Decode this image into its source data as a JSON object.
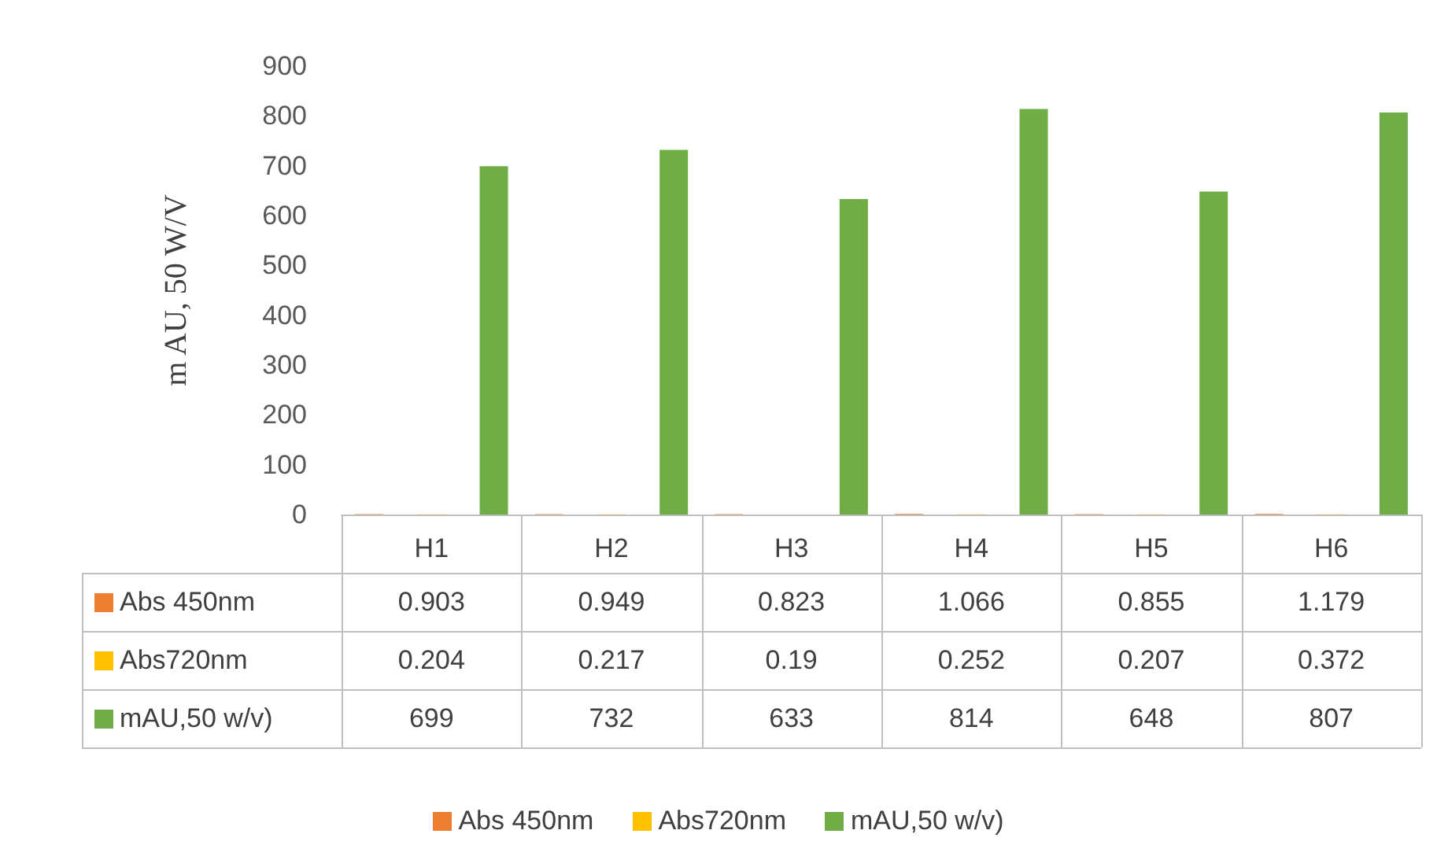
{
  "chart_data": {
    "type": "bar",
    "ylabel": "m AU, 50 W/V",
    "categories": [
      "H1",
      "H2",
      "H3",
      "H4",
      "H5",
      "H6"
    ],
    "series": [
      {
        "name": "Abs 450nm",
        "color": "#ed7d31",
        "values": [
          0.903,
          0.949,
          0.823,
          1.066,
          0.855,
          1.179
        ]
      },
      {
        "name": "Abs720nm",
        "color": "#ffc000",
        "values": [
          0.204,
          0.217,
          0.19,
          0.252,
          0.207,
          0.372
        ]
      },
      {
        "name": "mAU,50 w/v)",
        "color": "#70ad47",
        "values": [
          699,
          732,
          633,
          814,
          648,
          807
        ]
      }
    ],
    "ylim": [
      0,
      900
    ],
    "yticks": [
      0,
      100,
      200,
      300,
      400,
      500,
      600,
      700,
      800,
      900
    ],
    "grid": false,
    "legend": "bottom",
    "data_labels": true
  }
}
